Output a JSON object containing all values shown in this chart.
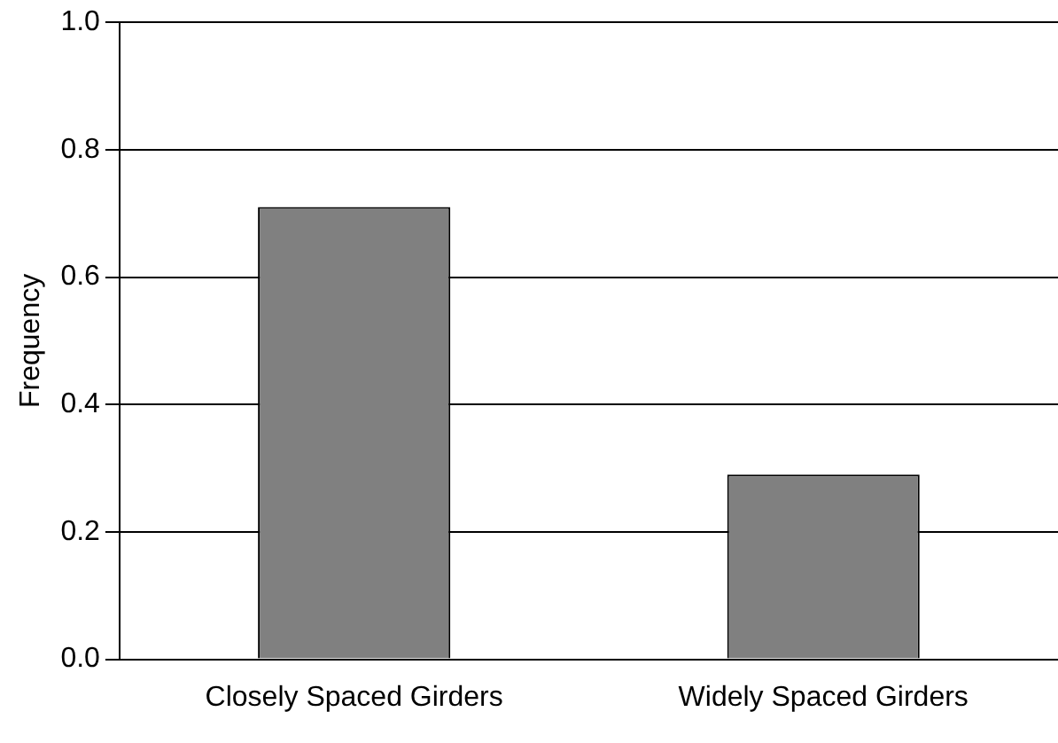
{
  "chart_data": {
    "type": "bar",
    "ylabel": "Frequency",
    "categories": [
      "Closely Spaced Girders",
      "Widely Spaced Girders"
    ],
    "values": [
      0.71,
      0.29
    ],
    "color": "#808080",
    "ylim": [
      0,
      1
    ],
    "yticks": [
      {
        "value": 0,
        "label": "0.0"
      },
      {
        "value": 0.2,
        "label": "0.2"
      },
      {
        "value": 0.4,
        "label": "0.4"
      },
      {
        "value": 0.6,
        "label": "0.6"
      },
      {
        "value": 0.8,
        "label": "0.8"
      },
      {
        "value": 1,
        "label": "1.0"
      }
    ],
    "grid": "y"
  }
}
